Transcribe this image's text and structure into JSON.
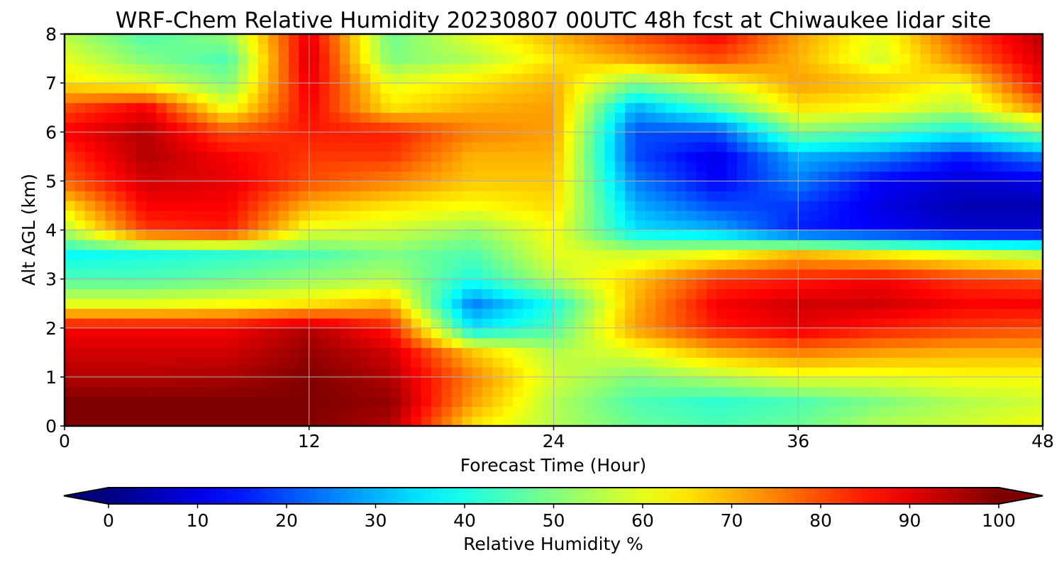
{
  "chart_data": {
    "type": "heatmap",
    "title": "WRF-Chem Relative Humidity 20230807 00UTC 48h fcst at Chiwaukee lidar site",
    "xlabel": "Forecast Time (Hour)",
    "ylabel": "Alt AGL (km)",
    "xlim": [
      0,
      48
    ],
    "ylim": [
      0,
      8
    ],
    "xticks": [
      0,
      12,
      24,
      36,
      48
    ],
    "yticks": [
      0,
      1,
      2,
      3,
      4,
      5,
      6,
      7,
      8
    ],
    "grid": true,
    "colormap": "jet",
    "colorbar": {
      "label": "Relative Humidity %",
      "min": 0,
      "max": 100,
      "ticks": [
        0,
        10,
        20,
        30,
        40,
        50,
        60,
        70,
        80,
        90,
        100
      ],
      "extend": "both",
      "orientation": "horizontal",
      "placement": "bottom"
    },
    "x_hours": [
      0,
      4,
      8,
      12,
      16,
      20,
      24,
      28,
      32,
      36,
      40,
      44,
      48
    ],
    "y_km": [
      0,
      0.5,
      1,
      1.5,
      2,
      2.5,
      3,
      3.5,
      4,
      4.5,
      5,
      5.5,
      6,
      6.5,
      7,
      7.5,
      8
    ],
    "rh_percent": [
      [
        100,
        100,
        100,
        100,
        95,
        65,
        55,
        48,
        45,
        48,
        55,
        58,
        62
      ],
      [
        100,
        100,
        100,
        100,
        98,
        72,
        55,
        45,
        42,
        45,
        50,
        55,
        58
      ],
      [
        95,
        95,
        96,
        100,
        95,
        75,
        58,
        50,
        55,
        60,
        60,
        62,
        62
      ],
      [
        92,
        92,
        92,
        98,
        92,
        68,
        55,
        60,
        70,
        75,
        72,
        70,
        70
      ],
      [
        88,
        88,
        88,
        95,
        85,
        35,
        45,
        72,
        85,
        90,
        85,
        82,
        80
      ],
      [
        60,
        60,
        62,
        65,
        70,
        25,
        40,
        70,
        88,
        92,
        92,
        88,
        88
      ],
      [
        45,
        45,
        48,
        52,
        55,
        40,
        55,
        68,
        82,
        85,
        88,
        82,
        80
      ],
      [
        38,
        40,
        42,
        45,
        50,
        45,
        60,
        58,
        62,
        70,
        65,
        60,
        55
      ],
      [
        55,
        82,
        85,
        60,
        58,
        52,
        62,
        35,
        30,
        15,
        12,
        8,
        8
      ],
      [
        65,
        88,
        88,
        70,
        65,
        62,
        66,
        30,
        20,
        18,
        10,
        5,
        5
      ],
      [
        78,
        92,
        90,
        80,
        75,
        68,
        68,
        25,
        12,
        25,
        12,
        8,
        10
      ],
      [
        82,
        95,
        88,
        82,
        82,
        70,
        70,
        20,
        10,
        30,
        25,
        15,
        25
      ],
      [
        88,
        95,
        80,
        85,
        85,
        75,
        72,
        20,
        20,
        50,
        45,
        38,
        50
      ],
      [
        80,
        88,
        60,
        88,
        65,
        70,
        72,
        30,
        45,
        65,
        62,
        55,
        75
      ],
      [
        65,
        60,
        50,
        90,
        60,
        65,
        70,
        50,
        60,
        72,
        68,
        62,
        88
      ],
      [
        60,
        50,
        45,
        92,
        50,
        55,
        65,
        72,
        80,
        70,
        58,
        75,
        92
      ],
      [
        55,
        45,
        52,
        90,
        48,
        60,
        70,
        80,
        88,
        72,
        60,
        80,
        95
      ]
    ]
  }
}
